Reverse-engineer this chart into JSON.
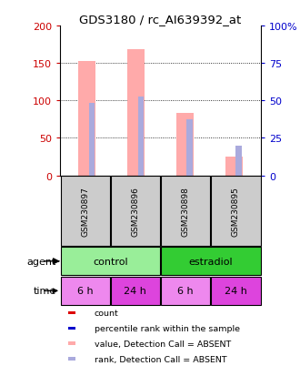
{
  "title": "GDS3180 / rc_AI639392_at",
  "samples": [
    "GSM230897",
    "GSM230896",
    "GSM230898",
    "GSM230895"
  ],
  "bar_values": [
    152,
    168,
    83,
    25
  ],
  "rank_values": [
    97,
    105,
    75,
    0
  ],
  "rank_dot_values": [
    0,
    0,
    0,
    40
  ],
  "rank_dot_show": [
    false,
    false,
    false,
    true
  ],
  "bar_color_absent": "#ffaaaa",
  "rank_color_absent": "#aaaadd",
  "ylim_left": [
    0,
    200
  ],
  "ylim_right": [
    0,
    100
  ],
  "yticks_left": [
    0,
    50,
    100,
    150,
    200
  ],
  "yticks_right": [
    0,
    25,
    50,
    75,
    100
  ],
  "ytick_labels_right": [
    "0",
    "25",
    "50",
    "75",
    "100%"
  ],
  "time_labels": [
    "6 h",
    "24 h",
    "6 h",
    "24 h"
  ],
  "legend_colors": [
    "#dd0000",
    "#0000cc",
    "#ffaaaa",
    "#aaaadd"
  ],
  "legend_labels": [
    "count",
    "percentile rank within the sample",
    "value, Detection Call = ABSENT",
    "rank, Detection Call = ABSENT"
  ],
  "left_tick_color": "#cc0000",
  "right_tick_color": "#0000cc",
  "bar_width": 0.35,
  "rank_bar_width": 0.12,
  "control_color": "#99ee99",
  "estradiol_color": "#33cc33",
  "time_color_light": "#ee88ee",
  "time_color_dark": "#dd44dd"
}
